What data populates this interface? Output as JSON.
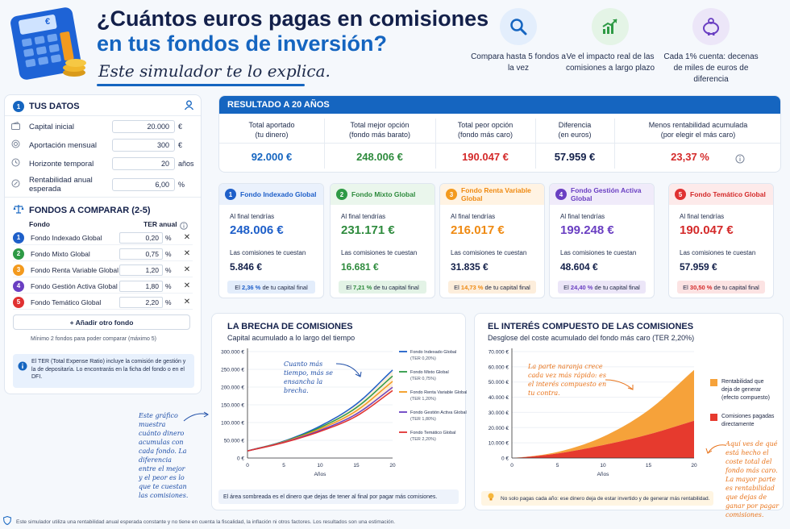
{
  "header": {
    "title_line1": "¿Cuántos euros pagas en comisiones",
    "title_line2": "en tus fondos de inversión?",
    "subtitle": "Este simulador te lo explica.",
    "calculator_label": "€",
    "features": [
      {
        "icon": "magnifier-icon",
        "text": "Compara hasta 5 fondos a la vez"
      },
      {
        "icon": "growth-chart-icon",
        "text": "Ve el impacto real de las comisiones a largo plazo"
      },
      {
        "icon": "piggy-bank-icon",
        "text": "Cada 1% cuenta: decenas de miles de euros de diferencia"
      }
    ]
  },
  "tus_datos": {
    "number": "1",
    "title": "TUS DATOS",
    "rows": [
      {
        "label": "Capital inicial",
        "value": "20.000",
        "unit": "€"
      },
      {
        "label": "Aportación mensual",
        "value": "300",
        "unit": "€"
      },
      {
        "label": "Horizonte temporal",
        "value": "20",
        "unit": "años"
      },
      {
        "label": "Rentabilidad anual esperada",
        "value": "6,00",
        "unit": "%"
      }
    ]
  },
  "fondos": {
    "title": "FONDOS A COMPARAR (2-5)",
    "col_fondo": "Fondo",
    "col_ter": "TER anual",
    "items": [
      {
        "n": "1",
        "name": "Fondo Indexado Global",
        "ter": "0,20",
        "color": "#1e5fc9"
      },
      {
        "n": "2",
        "name": "Fondo Mixto Global",
        "ter": "0,75",
        "color": "#2e9a45"
      },
      {
        "n": "3",
        "name": "Fondo Renta Variable Global",
        "ter": "1,20",
        "color": "#f39a1e"
      },
      {
        "n": "4",
        "name": "Fondo Gestión Activa Global",
        "ter": "1,80",
        "color": "#6a3fc2"
      },
      {
        "n": "5",
        "name": "Fondo Temático Global",
        "ter": "2,20",
        "color": "#e03131"
      }
    ],
    "pct": "%",
    "remove": "✕",
    "add_button": "+ Añadir otro fondo",
    "hint": "Mínimo 2 fondos para poder comparar (máximo 5)",
    "info": "El TER (Total Expense Ratio) incluye la comisión de gestión y la de depositaría. Lo encontrarás en la ficha del fondo o en el DFI."
  },
  "resultado": {
    "title": "RESULTADO A 20 AÑOS",
    "cols": [
      {
        "label1": "Total aportado",
        "label2": "(tu dinero)",
        "value": "92.000 €",
        "color": "#1565c0"
      },
      {
        "label1": "Total mejor opción",
        "label2": "(fondo más barato)",
        "value": "248.006 €",
        "color": "#2e8b3d"
      },
      {
        "label1": "Total peor opción",
        "label2": "(fondo más caro)",
        "value": "190.047 €",
        "color": "#d42a2a"
      },
      {
        "label1": "Diferencia",
        "label2": "(en euros)",
        "value": "57.959 €",
        "color": "#13204a"
      },
      {
        "label1": "Menos rentabilidad acumulada",
        "label2": "(por elegir el más caro)",
        "value": "23,37 %",
        "color": "#d42a2a"
      }
    ]
  },
  "fund_cards": [
    {
      "n": "1",
      "name": "Fondo Indexado Global",
      "final_label": "Al final tendrías",
      "final": "248.006 €",
      "cost_label": "Las comisiones te cuestan",
      "cost": "5.846 €",
      "pill_pre": "El ",
      "pill_pct": "2,36 %",
      "pill_post": " de tu capital final",
      "color": "#1e5fc9",
      "bg": "#eaf1fc",
      "pillbg": "#e3edfb",
      "valcolor": "#1e5fc9",
      "costcolor": "#13204a"
    },
    {
      "n": "2",
      "name": "Fondo Mixto Global",
      "final_label": "Al final tendrías",
      "final": "231.171 €",
      "cost_label": "Las comisiones te cuestan",
      "cost": "16.681 €",
      "pill_pre": "El ",
      "pill_pct": "7,21 %",
      "pill_post": " de tu capital final",
      "color": "#2e9a45",
      "bg": "#eaf6ec",
      "pillbg": "#e3f3e6",
      "valcolor": "#2e8b3d",
      "costcolor": "#2e8b3d"
    },
    {
      "n": "3",
      "name": "Fondo Renta Variable Global",
      "final_label": "Al final tendrías",
      "final": "216.017 €",
      "cost_label": "Las comisiones te cuestan",
      "cost": "31.835 €",
      "pill_pre": "El ",
      "pill_pct": "14,73 %",
      "pill_post": " de tu capital final",
      "color": "#f39a1e",
      "bg": "#fff3e3",
      "pillbg": "#fdeedc",
      "valcolor": "#ef8a12",
      "costcolor": "#13204a"
    },
    {
      "n": "4",
      "name": "Fondo Gestión Activa Global",
      "final_label": "Al final tendrías",
      "final": "199.248 €",
      "cost_label": "Las comisiones te cuestan",
      "cost": "48.604 €",
      "pill_pre": "El ",
      "pill_pct": "24,40 %",
      "pill_post": " de tu capital final",
      "color": "#6a3fc2",
      "bg": "#f0ebfa",
      "pillbg": "#ece6f8",
      "valcolor": "#6a3fc2",
      "costcolor": "#13204a"
    },
    {
      "n": "5",
      "name": "Fondo Temático Global",
      "final_label": "Al final tendrías",
      "final": "190.047 €",
      "cost_label": "Las comisiones te cuestan",
      "cost": "57.959 €",
      "pill_pre": "El ",
      "pill_pct": "30,50 %",
      "pill_post": " de tu capital final",
      "color": "#e03131",
      "bg": "#fdeaea",
      "pillbg": "#fce3e3",
      "valcolor": "#d42a2a",
      "costcolor": "#13204a"
    }
  ],
  "chart1": {
    "title": "LA BRECHA DE COMISIONES",
    "subtitle": "Capital acumulado a lo largo del tiempo",
    "annotation": "Cuanto más tiempo, más se ensancha la brecha.",
    "footer": "El área sombreada es el dinero que dejas de tener al final por pagar más comisiones.",
    "side_note": "Este gráfico muestra cuánto dinero acumulas con cada fondo. La diferencia entre el mejor y el peor es lo que te cuestan las comisiones."
  },
  "chart2": {
    "title": "EL INTERÉS COMPUESTO DE LAS COMISIONES",
    "subtitle": "Desglose del coste acumulado del fondo más caro (TER 2,20%)",
    "annotation": "La parte naranja crece cada vez más rápido: es el interés compuesto en tu contra.",
    "footer": "No solo pagas cada año: ese dinero deja de estar invertido y de generar más rentabilidad.",
    "side_note": "Aquí ves de qué está hecho el coste total del fondo más caro. La mayor parte es rentabilidad que dejas de ganar por pagar comisiones.",
    "legend": [
      {
        "label": "Rentabilidad que deja de generar (efecto compuesto)",
        "color": "#f6a23a"
      },
      {
        "label": "Comisiones pagadas directamente",
        "color": "#e63a2e"
      }
    ]
  },
  "chart_data": [
    {
      "type": "line",
      "title": "LA BRECHA DE COMISIONES",
      "subtitle": "Capital acumulado a lo largo del tiempo",
      "xlabel": "Años",
      "ylabel": "",
      "x": [
        0,
        5,
        10,
        15,
        20
      ],
      "xticks": [
        "0",
        "5",
        "10",
        "15",
        "20"
      ],
      "xlim": [
        0,
        20
      ],
      "yticks": [
        "0 €",
        "50.000 €",
        "100.000 €",
        "150.000 €",
        "200.000 €",
        "250.000 €",
        "300.000 €"
      ],
      "ylim": [
        0,
        300000
      ],
      "legend_position": "right",
      "series": [
        {
          "name": "Fondo Indexado Global",
          "note": "(TER 0,20%)",
          "color": "#1e5fc9",
          "values": [
            20000,
            47500,
            90000,
            152000,
            248006
          ]
        },
        {
          "name": "Fondo Mixto Global",
          "note": "(TER 0,75%)",
          "color": "#2e9a45",
          "values": [
            20000,
            46500,
            86000,
            142000,
            231171
          ]
        },
        {
          "name": "Fondo Renta Variable Global",
          "note": "(TER 1,20%)",
          "color": "#f39a1e",
          "values": [
            20000,
            45500,
            82000,
            133000,
            216017
          ]
        },
        {
          "name": "Fondo Gestión Activa Global",
          "note": "(TER 1,80%)",
          "color": "#6a3fc2",
          "values": [
            20000,
            44300,
            78000,
            124000,
            199248
          ]
        },
        {
          "name": "Fondo Temático Global",
          "note": "(TER 2,20%)",
          "color": "#e03131",
          "values": [
            20000,
            43500,
            75000,
            118000,
            190047
          ]
        }
      ]
    },
    {
      "type": "area",
      "title": "EL INTERÉS COMPUESTO DE LAS COMISIONES",
      "subtitle": "Desglose del coste acumulado del fondo más caro (TER 2,20%)",
      "xlabel": "Años",
      "x": [
        0,
        5,
        10,
        15,
        20
      ],
      "xticks": [
        "0",
        "5",
        "10",
        "15",
        "20"
      ],
      "xlim": [
        0,
        20
      ],
      "yticks": [
        "0 €",
        "10.000 €",
        "20.000 €",
        "30.000 €",
        "40.000 €",
        "50.000 €",
        "60.000 €",
        "70.000 €"
      ],
      "ylim": [
        0,
        70000
      ],
      "stacked": true,
      "legend_position": "right",
      "series": [
        {
          "name": "Comisiones pagadas directamente",
          "color": "#e63a2e",
          "values": [
            0,
            3000,
            8500,
            15500,
            24500
          ]
        },
        {
          "name": "Rentabilidad que deja de generar (efecto compuesto)",
          "color": "#f6a23a",
          "values": [
            0,
            1000,
            5500,
            16000,
            33459
          ]
        }
      ]
    }
  ],
  "footer": {
    "text": "Este simulador utiliza una rentabilidad anual esperada constante y no tiene en cuenta la fiscalidad, la inflación ni otros factores. Los resultados son una estimación."
  }
}
